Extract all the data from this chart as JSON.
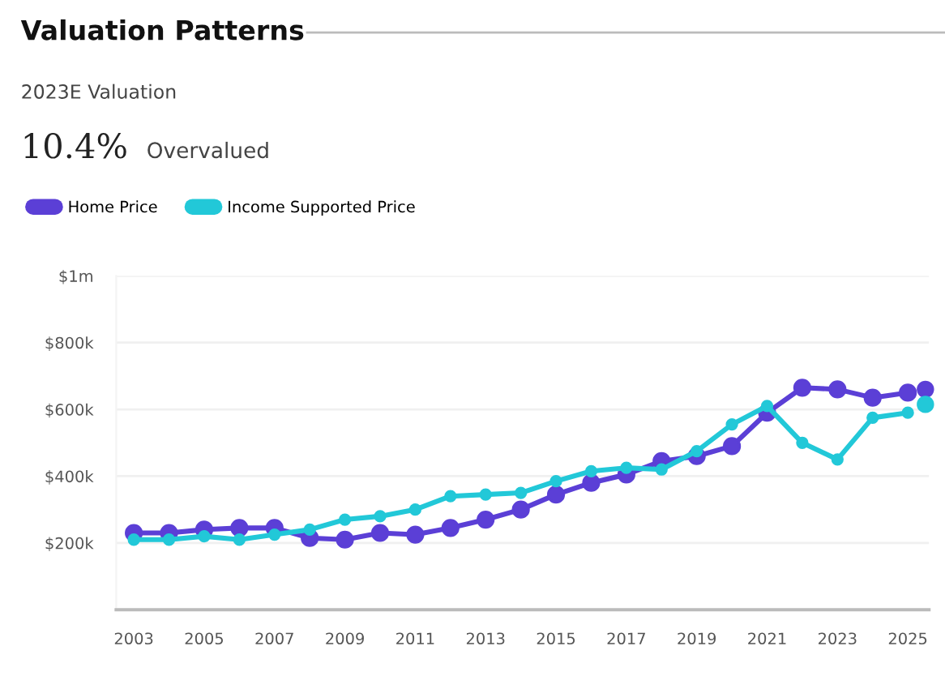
{
  "chart_data": {
    "type": "line",
    "title": "Valuation Patterns",
    "annotations": [
      "2023E Valuation",
      "10.4%",
      "Overvalued"
    ],
    "x": [
      2003,
      2004,
      2005,
      2006,
      2007,
      2008,
      2009,
      2010,
      2011,
      2012,
      2013,
      2014,
      2015,
      2016,
      2017,
      2018,
      2019,
      2020,
      2021,
      2022,
      2023,
      2024,
      2025
    ],
    "series": [
      {
        "name": "Home Price",
        "color": "#5b3fd6",
        "values": [
          230000,
          230000,
          240000,
          245000,
          245000,
          215000,
          210000,
          230000,
          225000,
          245000,
          270000,
          300000,
          345000,
          380000,
          405000,
          445000,
          460000,
          490000,
          590000,
          665000,
          660000,
          635000,
          650000
        ]
      },
      {
        "name": "Income Supported Price",
        "color": "#22c8d8",
        "values": [
          210000,
          210000,
          220000,
          210000,
          225000,
          240000,
          270000,
          280000,
          300000,
          340000,
          345000,
          350000,
          385000,
          415000,
          425000,
          420000,
          475000,
          555000,
          610000,
          500000,
          450000,
          575000,
          590000
        ]
      },
      {
        "type": "scatter",
        "color": "#5b3fd6",
        "x": [
          2025.5
        ],
        "values": [
          660000
        ]
      },
      {
        "type": "scatter",
        "color": "#22c8d8",
        "x": [
          2025.5
        ],
        "values": [
          615000
        ]
      }
    ],
    "xlim": [
      2002.5,
      2025.6
    ],
    "xticks": [
      2003,
      2005,
      2007,
      2009,
      2011,
      2013,
      2015,
      2017,
      2019,
      2021,
      2023,
      2025
    ],
    "ylim": [
      0,
      1000000
    ],
    "yticks": [
      {
        "value": 200000,
        "label": "$200k"
      },
      {
        "value": 400000,
        "label": "$400k"
      },
      {
        "value": 600000,
        "label": "$600k"
      },
      {
        "value": 800000,
        "label": "$800k"
      },
      {
        "value": 1000000,
        "label": "$1m"
      }
    ],
    "grid": "y",
    "legend": "top left",
    "marker": "circle",
    "line_style": "solid"
  }
}
